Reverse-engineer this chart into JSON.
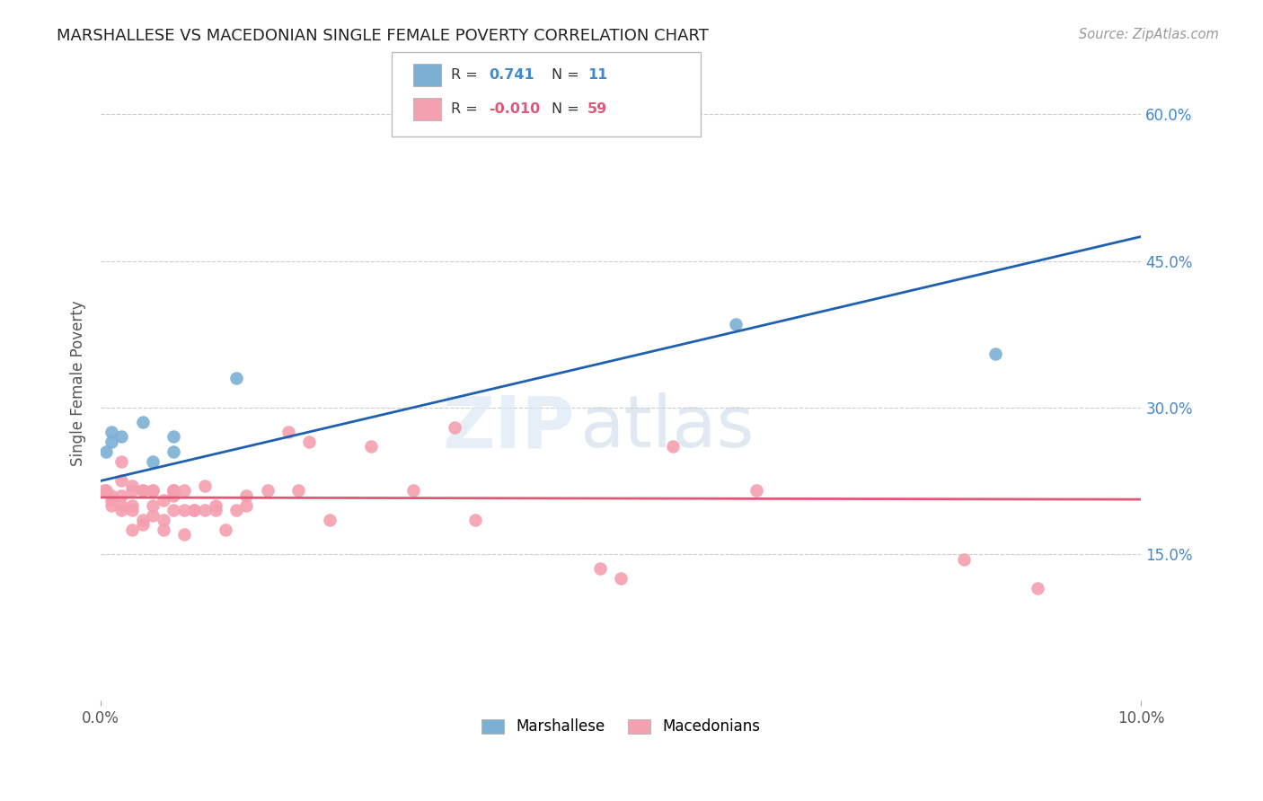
{
  "title": "MARSHALLESE VS MACEDONIAN SINGLE FEMALE POVERTY CORRELATION CHART",
  "source": "Source: ZipAtlas.com",
  "ylabel": "Single Female Poverty",
  "xlim": [
    0.0,
    0.1
  ],
  "ylim": [
    0.0,
    0.65
  ],
  "ytick_values": [
    0.15,
    0.3,
    0.45,
    0.6
  ],
  "ytick_labels": [
    "15.0%",
    "30.0%",
    "45.0%",
    "60.0%"
  ],
  "grid_color": "#cccccc",
  "background_color": "#ffffff",
  "marshallese_color": "#7bafd4",
  "macedonian_color": "#f4a0b0",
  "trend_blue": "#2060b0",
  "trend_pink": "#e05878",
  "marshallese_x": [
    0.0005,
    0.001,
    0.001,
    0.002,
    0.004,
    0.005,
    0.007,
    0.007,
    0.013,
    0.061,
    0.086
  ],
  "marshallese_y": [
    0.255,
    0.275,
    0.265,
    0.27,
    0.285,
    0.245,
    0.255,
    0.27,
    0.33,
    0.385,
    0.355
  ],
  "macedonian_x": [
    0.0003,
    0.0005,
    0.001,
    0.001,
    0.001,
    0.002,
    0.002,
    0.002,
    0.002,
    0.002,
    0.003,
    0.003,
    0.003,
    0.003,
    0.003,
    0.004,
    0.004,
    0.004,
    0.004,
    0.005,
    0.005,
    0.005,
    0.005,
    0.006,
    0.006,
    0.006,
    0.007,
    0.007,
    0.007,
    0.007,
    0.007,
    0.008,
    0.008,
    0.008,
    0.009,
    0.009,
    0.01,
    0.01,
    0.011,
    0.011,
    0.012,
    0.013,
    0.014,
    0.014,
    0.016,
    0.018,
    0.019,
    0.02,
    0.022,
    0.026,
    0.03,
    0.034,
    0.036,
    0.048,
    0.05,
    0.055,
    0.063,
    0.083,
    0.09
  ],
  "macedonian_y": [
    0.215,
    0.215,
    0.205,
    0.2,
    0.21,
    0.21,
    0.225,
    0.245,
    0.2,
    0.195,
    0.22,
    0.215,
    0.2,
    0.195,
    0.175,
    0.185,
    0.18,
    0.215,
    0.215,
    0.2,
    0.215,
    0.215,
    0.19,
    0.205,
    0.185,
    0.175,
    0.215,
    0.215,
    0.21,
    0.195,
    0.215,
    0.215,
    0.17,
    0.195,
    0.195,
    0.195,
    0.195,
    0.22,
    0.2,
    0.195,
    0.175,
    0.195,
    0.2,
    0.21,
    0.215,
    0.275,
    0.215,
    0.265,
    0.185,
    0.26,
    0.215,
    0.28,
    0.185,
    0.135,
    0.125,
    0.26,
    0.215,
    0.145,
    0.115
  ],
  "blue_trend_x0": 0.0,
  "blue_trend_y0": 0.225,
  "blue_trend_x1": 0.1,
  "blue_trend_y1": 0.475,
  "pink_trend_x0": 0.0,
  "pink_trend_y0": 0.208,
  "pink_trend_x1": 0.1,
  "pink_trend_y1": 0.206,
  "watermark_zip": "ZIP",
  "watermark_atlas": "atlas",
  "legend_label_blue": "Marshallese",
  "legend_label_pink": "Macedonians"
}
